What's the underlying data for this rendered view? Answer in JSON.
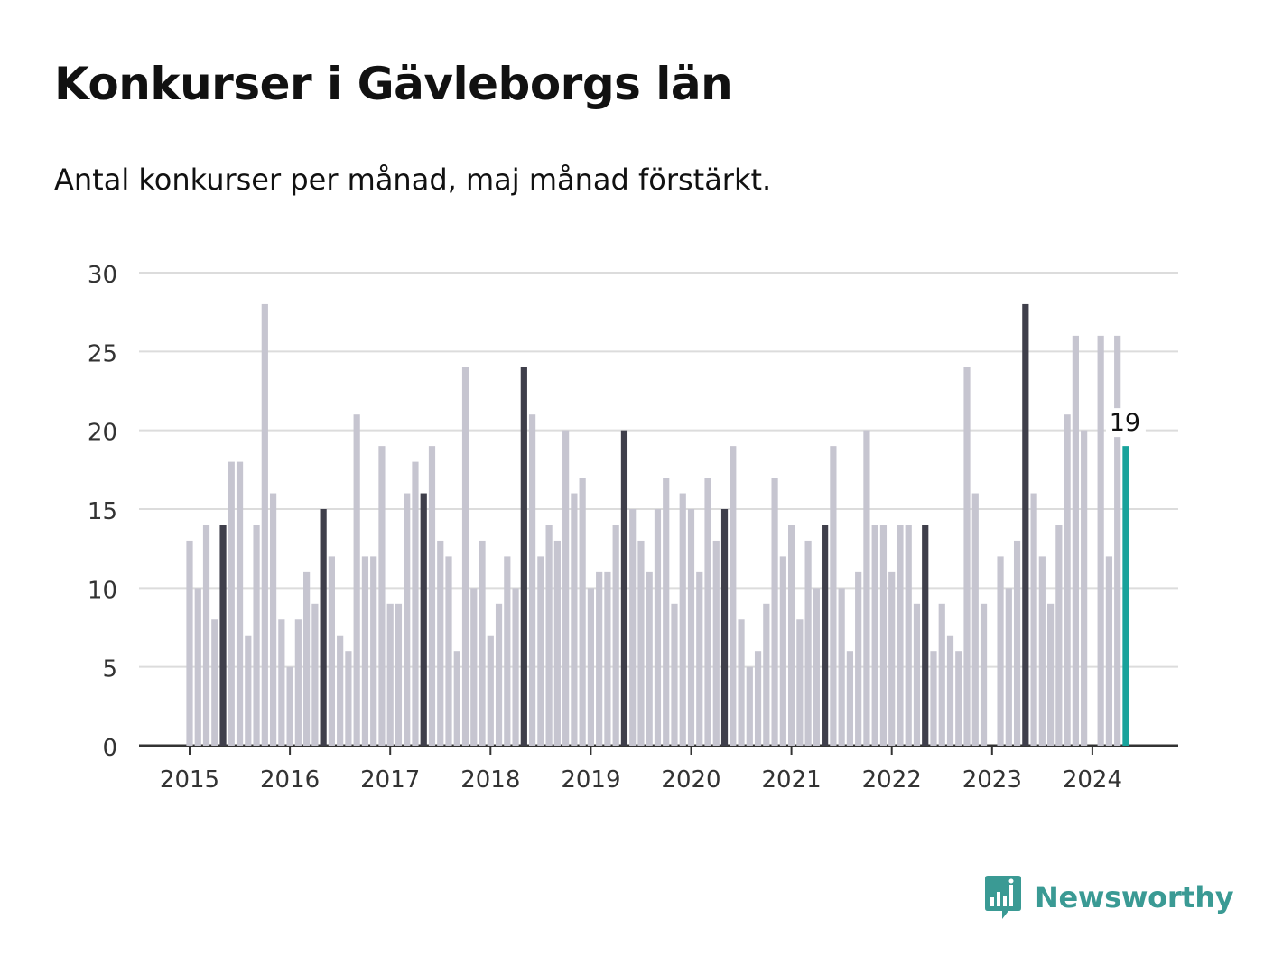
{
  "chart_data": {
    "type": "bar",
    "title": "Konkurser i Gävleborgs län",
    "subtitle": "Antal konkurser per månad, maj månad förstärkt.",
    "start": "2015-01",
    "values": [
      13,
      10,
      14,
      8,
      14,
      18,
      18,
      7,
      14,
      28,
      16,
      8,
      5,
      8,
      11,
      9,
      15,
      12,
      7,
      6,
      21,
      12,
      12,
      19,
      9,
      9,
      16,
      18,
      16,
      19,
      13,
      12,
      6,
      24,
      10,
      13,
      7,
      9,
      12,
      10,
      24,
      21,
      12,
      14,
      13,
      20,
      16,
      17,
      10,
      11,
      11,
      14,
      20,
      15,
      13,
      11,
      15,
      17,
      9,
      16,
      15,
      11,
      17,
      13,
      15,
      19,
      8,
      5,
      6,
      9,
      17,
      12,
      14,
      8,
      13,
      10,
      14,
      19,
      10,
      6,
      11,
      20,
      14,
      14,
      11,
      14,
      14,
      9,
      14,
      6,
      9,
      7,
      6,
      24,
      16,
      9,
      0,
      12,
      10,
      13,
      28,
      16,
      12,
      9,
      14,
      21,
      26,
      20,
      0,
      26,
      12,
      26,
      19
    ],
    "highlight_month": 5,
    "last_value_label": "19",
    "x_tick_labels": [
      "2015",
      "2016",
      "2017",
      "2018",
      "2019",
      "2020",
      "2021",
      "2022",
      "2023",
      "2024"
    ],
    "y_ticks": [
      0,
      5,
      10,
      15,
      20,
      25,
      30
    ],
    "ylim": [
      0,
      30
    ],
    "colors": {
      "bar": "#c6c5d0",
      "highlight": "#3f3f4b",
      "latest": "#17a29b",
      "grid": "#dcdcdc",
      "axis": "#333333"
    }
  },
  "brand": {
    "name": "Newsworthy",
    "icon": "newsworthy-logo-icon"
  }
}
